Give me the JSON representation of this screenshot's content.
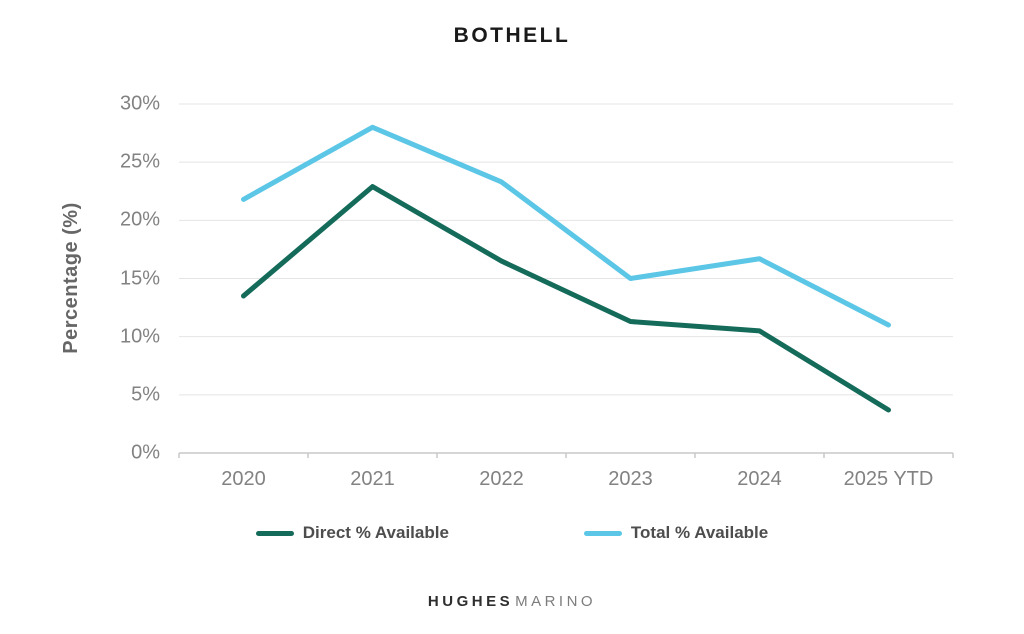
{
  "title": "BOTHELL",
  "y_axis_title": "Percentage (%)",
  "footer": {
    "brand_bold": "HUGHES",
    "brand_light": "MARINO"
  },
  "colors": {
    "direct_series": "#156b5a",
    "total_series": "#5bc6e6",
    "gridline": "#e4e4e4",
    "axis_line": "#c9c9c9",
    "tick_text": "#828282",
    "title_text": "#1a1a1a"
  },
  "chart_data": {
    "type": "line",
    "title": "BOTHELL",
    "xlabel": "",
    "ylabel": "Percentage (%)",
    "categories": [
      "2020",
      "2021",
      "2022",
      "2023",
      "2024",
      "2025 YTD"
    ],
    "series": [
      {
        "name": "Direct % Available",
        "color": "#156b5a",
        "values": [
          13.5,
          22.9,
          16.5,
          11.3,
          10.5,
          3.7
        ]
      },
      {
        "name": "Total % Available",
        "color": "#5bc6e6",
        "values": [
          21.8,
          28.0,
          23.3,
          15.0,
          16.7,
          11.0
        ]
      }
    ],
    "ylim": [
      0,
      30
    ],
    "ytick_step": 5,
    "ytick_labels": [
      "0%",
      "5%",
      "10%",
      "15%",
      "20%",
      "25%",
      "30%"
    ],
    "grid": true,
    "legend_position": "bottom"
  }
}
